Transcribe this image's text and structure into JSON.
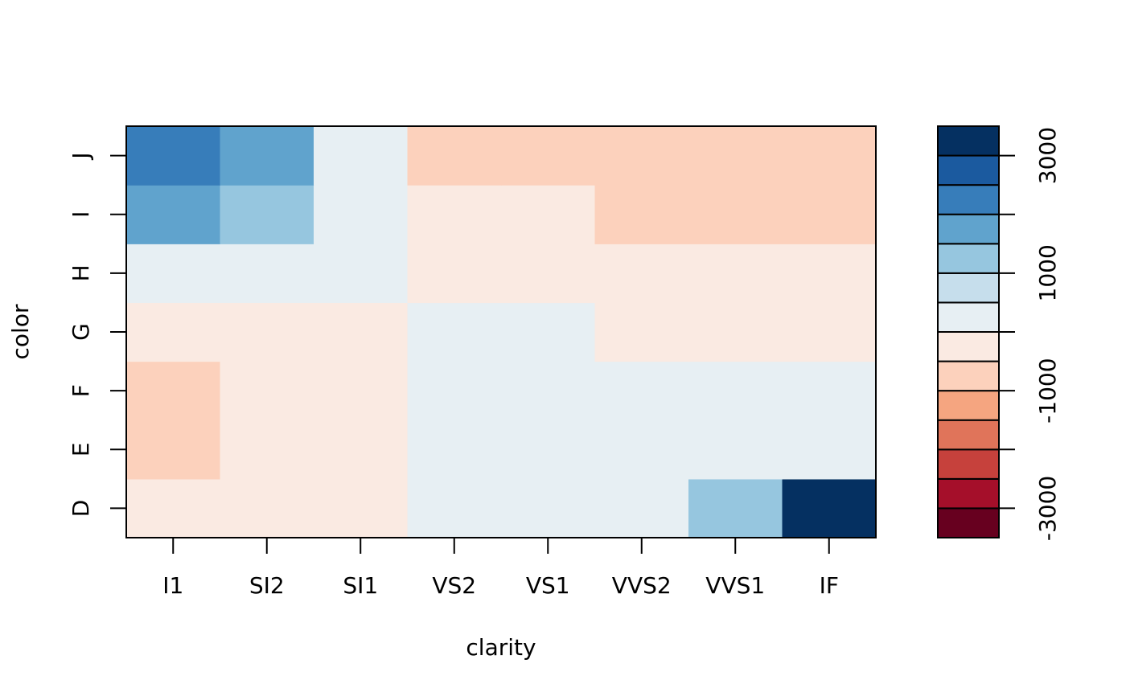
{
  "chart_data": {
    "type": "heatmap",
    "xlabel": "clarity",
    "ylabel": "color",
    "x_categories": [
      "I1",
      "SI2",
      "SI1",
      "VS2",
      "VS1",
      "VVS2",
      "VVS1",
      "IF"
    ],
    "y_categories": [
      "D",
      "E",
      "F",
      "G",
      "H",
      "I",
      "J"
    ],
    "values": [
      [
        -200,
        -200,
        -200,
        300,
        300,
        300,
        1000,
        3500
      ],
      [
        -1000,
        -200,
        -200,
        300,
        300,
        300,
        300,
        300
      ],
      [
        -1000,
        -200,
        -200,
        300,
        300,
        300,
        300,
        300
      ],
      [
        -200,
        -200,
        -200,
        300,
        300,
        -200,
        -200,
        -200
      ],
      [
        300,
        300,
        300,
        -200,
        -200,
        -200,
        -200,
        -200
      ],
      [
        1500,
        1000,
        300,
        -200,
        -200,
        -1000,
        -1000,
        -1000
      ],
      [
        2000,
        1500,
        300,
        -1000,
        -1000,
        -1000,
        -1000,
        -1000
      ]
    ],
    "colorbar": {
      "breaks": [
        -3500,
        -3000,
        -2500,
        -2000,
        -1500,
        -1000,
        -500,
        0,
        500,
        1000,
        1500,
        2000,
        2500,
        3000,
        3500
      ],
      "colors": [
        "#67001F",
        "#A50F2A",
        "#C6413C",
        "#E0745A",
        "#F5A580",
        "#FCD1BC",
        "#FAEAE2",
        "#E7EFF3",
        "#C6DEEC",
        "#96C6DF",
        "#60A3CD",
        "#377DBA",
        "#1B5A9F",
        "#053061"
      ],
      "tick_values": [
        -3000,
        -2000,
        -1000,
        0,
        1000,
        2000,
        3000
      ],
      "tick_labels": [
        "-3000",
        "",
        "-1000",
        "",
        "1000",
        "",
        "3000"
      ]
    }
  }
}
